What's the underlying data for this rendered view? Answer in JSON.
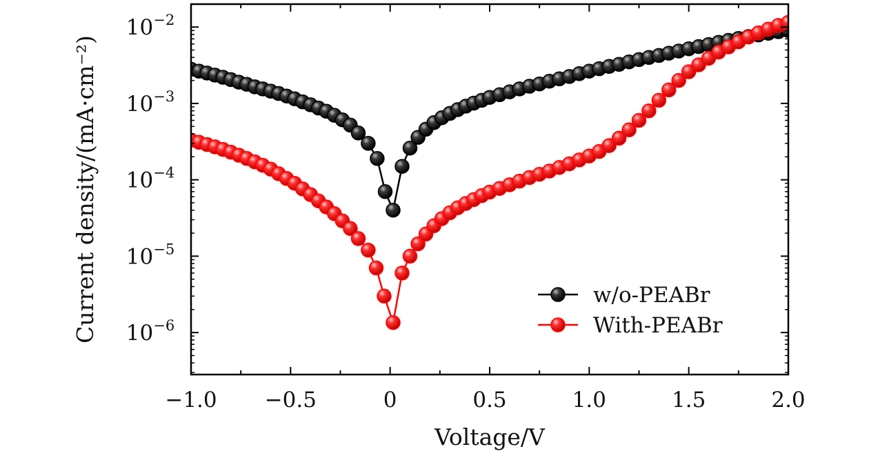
{
  "chart_data": {
    "type": "scatter",
    "title": "",
    "xlabel": "Voltage/V",
    "ylabel": "Current density/(mA·cm⁻²)",
    "xlim": [
      -1.0,
      2.0
    ],
    "ylim_log10": [
      -6.55,
      -1.7
    ],
    "yscale": "log",
    "x_ticks": [
      -1.0,
      -0.5,
      0,
      0.5,
      1.0,
      1.5,
      2.0
    ],
    "x_tick_labels": [
      "−1.0",
      "−0.5",
      "0",
      "0.5",
      "1.0",
      "1.5",
      "2.0"
    ],
    "y_ticks_log10": [
      -6,
      -5,
      -4,
      -3,
      -2
    ],
    "y_tick_labels": [
      {
        "base": "10",
        "exp": "−6"
      },
      {
        "base": "10",
        "exp": "−5"
      },
      {
        "base": "10",
        "exp": "−4"
      },
      {
        "base": "10",
        "exp": "−3"
      },
      {
        "base": "10",
        "exp": "−2"
      }
    ],
    "legend_position": "bottom-right",
    "series": [
      {
        "name": "w/o-PEABr",
        "color": "#000000",
        "points": [
          [
            -1.0,
            0.0028
          ],
          [
            -0.96,
            0.00265
          ],
          [
            -0.92,
            0.0025
          ],
          [
            -0.88,
            0.00235
          ],
          [
            -0.84,
            0.0022
          ],
          [
            -0.8,
            0.00205
          ],
          [
            -0.76,
            0.0019
          ],
          [
            -0.72,
            0.00178
          ],
          [
            -0.68,
            0.00165
          ],
          [
            -0.64,
            0.00155
          ],
          [
            -0.6,
            0.00145
          ],
          [
            -0.56,
            0.00135
          ],
          [
            -0.52,
            0.00125
          ],
          [
            -0.48,
            0.00115
          ],
          [
            -0.44,
            0.00105
          ],
          [
            -0.4,
            0.00096
          ],
          [
            -0.36,
            0.00087
          ],
          [
            -0.32,
            0.00079
          ],
          [
            -0.28,
            0.0007
          ],
          [
            -0.24,
            0.00061
          ],
          [
            -0.2,
            0.00052
          ],
          [
            -0.16,
            0.00041
          ],
          [
            -0.11,
            0.0003
          ],
          [
            -0.065,
            0.00019
          ],
          [
            -0.025,
            7e-05
          ],
          [
            0.015,
            4e-05
          ],
          [
            0.06,
            0.00015
          ],
          [
            0.1,
            0.00026
          ],
          [
            0.14,
            0.00036
          ],
          [
            0.18,
            0.00046
          ],
          [
            0.22,
            0.00056
          ],
          [
            0.26,
            0.00065
          ],
          [
            0.3,
            0.00074
          ],
          [
            0.34,
            0.00083
          ],
          [
            0.38,
            0.00092
          ],
          [
            0.42,
            0.00101
          ],
          [
            0.46,
            0.0011
          ],
          [
            0.5,
            0.0012
          ],
          [
            0.55,
            0.0013
          ],
          [
            0.6,
            0.00142
          ],
          [
            0.65,
            0.00155
          ],
          [
            0.7,
            0.00168
          ],
          [
            0.75,
            0.0018
          ],
          [
            0.8,
            0.00195
          ],
          [
            0.85,
            0.0021
          ],
          [
            0.9,
            0.00225
          ],
          [
            0.95,
            0.00245
          ],
          [
            1.0,
            0.00265
          ],
          [
            1.05,
            0.00285
          ],
          [
            1.1,
            0.00305
          ],
          [
            1.15,
            0.00325
          ],
          [
            1.2,
            0.0035
          ],
          [
            1.25,
            0.00375
          ],
          [
            1.3,
            0.004
          ],
          [
            1.35,
            0.00425
          ],
          [
            1.4,
            0.00455
          ],
          [
            1.45,
            0.00485
          ],
          [
            1.5,
            0.0052
          ],
          [
            1.55,
            0.00555
          ],
          [
            1.6,
            0.0059
          ],
          [
            1.65,
            0.0063
          ],
          [
            1.7,
            0.0067
          ],
          [
            1.75,
            0.0071
          ],
          [
            1.8,
            0.0075
          ],
          [
            1.85,
            0.0079
          ],
          [
            1.9,
            0.0083
          ],
          [
            1.95,
            0.0087
          ],
          [
            2.0,
            0.009
          ]
        ]
      },
      {
        "name": "With-PEABr",
        "color": "#ff0000",
        "points": [
          [
            -1.0,
            0.00033
          ],
          [
            -0.96,
            0.00031
          ],
          [
            -0.92,
            0.00029
          ],
          [
            -0.88,
            0.00027
          ],
          [
            -0.84,
            0.00025
          ],
          [
            -0.8,
            0.00023
          ],
          [
            -0.76,
            0.00021
          ],
          [
            -0.72,
            0.00019
          ],
          [
            -0.68,
            0.000172
          ],
          [
            -0.64,
            0.000155
          ],
          [
            -0.6,
            0.000138
          ],
          [
            -0.56,
            0.00012
          ],
          [
            -0.52,
            0.000104
          ],
          [
            -0.48,
            9e-05
          ],
          [
            -0.44,
            7.6e-05
          ],
          [
            -0.4,
            6.4e-05
          ],
          [
            -0.36,
            5.3e-05
          ],
          [
            -0.32,
            4.4e-05
          ],
          [
            -0.28,
            3.6e-05
          ],
          [
            -0.24,
            2.9e-05
          ],
          [
            -0.2,
            2.3e-05
          ],
          [
            -0.16,
            1.7e-05
          ],
          [
            -0.11,
            1.2e-05
          ],
          [
            -0.07,
            7e-06
          ],
          [
            -0.03,
            3e-06
          ],
          [
            0.015,
            1.35e-06
          ],
          [
            0.06,
            6e-06
          ],
          [
            0.1,
            1e-05
          ],
          [
            0.14,
            1.45e-05
          ],
          [
            0.18,
            1.95e-05
          ],
          [
            0.22,
            2.5e-05
          ],
          [
            0.26,
            3.1e-05
          ],
          [
            0.3,
            3.7e-05
          ],
          [
            0.34,
            4.3e-05
          ],
          [
            0.38,
            4.9e-05
          ],
          [
            0.42,
            5.5e-05
          ],
          [
            0.46,
            6.2e-05
          ],
          [
            0.5,
            6.9e-05
          ],
          [
            0.55,
            7.7e-05
          ],
          [
            0.6,
            8.6e-05
          ],
          [
            0.65,
            9.6e-05
          ],
          [
            0.7,
            0.000107
          ],
          [
            0.75,
            0.000118
          ],
          [
            0.8,
            0.00013
          ],
          [
            0.85,
            0.000145
          ],
          [
            0.9,
            0.000162
          ],
          [
            0.95,
            0.000182
          ],
          [
            1.0,
            0.000205
          ],
          [
            1.05,
            0.000235
          ],
          [
            1.1,
            0.00028
          ],
          [
            1.15,
            0.00035
          ],
          [
            1.2,
            0.00045
          ],
          [
            1.25,
            0.0006
          ],
          [
            1.3,
            0.0008
          ],
          [
            1.35,
            0.0011
          ],
          [
            1.4,
            0.0015
          ],
          [
            1.45,
            0.002
          ],
          [
            1.5,
            0.0026
          ],
          [
            1.55,
            0.0032
          ],
          [
            1.6,
            0.0039
          ],
          [
            1.65,
            0.0047
          ],
          [
            1.7,
            0.0055
          ],
          [
            1.75,
            0.0064
          ],
          [
            1.8,
            0.0074
          ],
          [
            1.85,
            0.0084
          ],
          [
            1.9,
            0.0094
          ],
          [
            1.95,
            0.0105
          ],
          [
            2.0,
            0.0115
          ]
        ]
      }
    ]
  }
}
